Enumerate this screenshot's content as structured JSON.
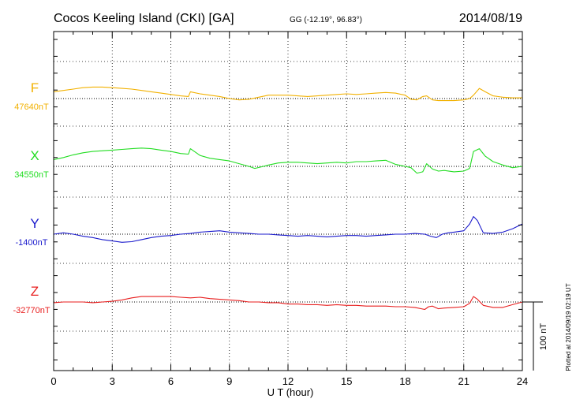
{
  "chart_data": {
    "type": "line",
    "title": "Cocos Keeling Island (CKI)  [GA]",
    "coords": "GG (-12.19°,  96.83°)",
    "date": "2014/08/19",
    "xlabel": "U T (hour)",
    "xlim": [
      0,
      24
    ],
    "x_ticks": [
      "0",
      "3",
      "6",
      "9",
      "12",
      "15",
      "18",
      "21",
      "24"
    ],
    "scale_label": "100 nT",
    "plotted_note": "Plotted at 2014/09/19 02:19 UT",
    "grid": true,
    "series": [
      {
        "name": "F",
        "baseline_label": "47640nT",
        "color": "#f2b100",
        "unit": "nT",
        "x": [
          0,
          0.5,
          1,
          1.5,
          2,
          2.5,
          3,
          3.5,
          4,
          4.5,
          5,
          5.5,
          6,
          6.5,
          6.9,
          7.0,
          7.5,
          8,
          8.5,
          9,
          9.5,
          10,
          10.5,
          11,
          11.5,
          12,
          12.5,
          13,
          13.5,
          14,
          14.5,
          15,
          15.5,
          16,
          16.5,
          17,
          17.5,
          18,
          18.3,
          18.6,
          18.9,
          19.1,
          19.4,
          19.7,
          20,
          20.5,
          21,
          21.3,
          21.5,
          21.8,
          22.1,
          22.5,
          23,
          23.5,
          24
        ],
        "values": [
          10,
          12,
          14,
          16,
          17,
          17,
          16,
          15,
          14,
          12,
          10,
          8,
          6,
          4,
          3,
          10,
          7,
          5,
          3,
          0,
          -2,
          -1,
          2,
          5,
          5,
          5,
          4,
          3,
          4,
          5,
          6,
          7,
          6,
          7,
          8,
          9,
          8,
          5,
          -1,
          -2,
          3,
          4,
          -2,
          -3,
          -3,
          -3,
          -2,
          0,
          5,
          15,
          10,
          4,
          2,
          1,
          1
        ]
      },
      {
        "name": "X",
        "baseline_label": "34550nT",
        "color": "#22dd22",
        "unit": "nT",
        "x": [
          0,
          0.5,
          1,
          1.5,
          2,
          2.5,
          3,
          3.5,
          4,
          4.5,
          5,
          5.5,
          6,
          6.5,
          6.9,
          7.0,
          7.5,
          8,
          8.5,
          9,
          9.5,
          10,
          10.3,
          10.6,
          11,
          11.5,
          12,
          12.5,
          13,
          13.5,
          14,
          14.5,
          15,
          15.5,
          16,
          16.5,
          17,
          17.5,
          18,
          18.3,
          18.6,
          18.9,
          19.1,
          19.4,
          19.7,
          20,
          20.5,
          21,
          21.3,
          21.5,
          21.8,
          22.1,
          22.5,
          23,
          23.5,
          24
        ],
        "values": [
          10,
          13,
          17,
          20,
          22,
          23,
          24,
          25,
          26,
          27,
          26,
          24,
          22,
          19,
          18,
          26,
          16,
          12,
          10,
          8,
          4,
          0,
          -3,
          -1,
          2,
          5,
          6,
          6,
          5,
          4,
          5,
          6,
          5,
          7,
          7,
          8,
          9,
          3,
          0,
          -2,
          -10,
          -8,
          4,
          -4,
          -7,
          -6,
          -8,
          -7,
          -3,
          22,
          26,
          15,
          7,
          2,
          -2,
          0
        ]
      },
      {
        "name": "Y",
        "baseline_label": "-1400nT",
        "color": "#1a1acc",
        "unit": "nT",
        "x": [
          0,
          0.5,
          1,
          1.5,
          2,
          2.5,
          3,
          3.5,
          4,
          4.5,
          5,
          5.5,
          6,
          6.5,
          7,
          7.5,
          8,
          8.5,
          9,
          9.5,
          10,
          10.5,
          11,
          11.5,
          12,
          12.5,
          13,
          13.5,
          14,
          14.5,
          15,
          15.5,
          16,
          16.5,
          17,
          17.5,
          18,
          18.5,
          19,
          19.3,
          19.6,
          19.9,
          20.2,
          20.5,
          21,
          21.3,
          21.5,
          21.7,
          22,
          22.5,
          23,
          23.5,
          24
        ],
        "values": [
          0,
          2,
          0,
          -3,
          -5,
          -8,
          -10,
          -12,
          -11,
          -8,
          -5,
          -3,
          -2,
          0,
          1,
          3,
          4,
          5,
          3,
          2,
          1,
          0,
          0,
          -1,
          -2,
          -3,
          -2,
          -3,
          -4,
          -3,
          -2,
          -2,
          -3,
          -2,
          -1,
          0,
          0,
          1,
          0,
          -3,
          -5,
          0,
          2,
          3,
          5,
          15,
          26,
          20,
          2,
          1,
          3,
          8,
          15
        ]
      },
      {
        "name": "Z",
        "baseline_label": "-32770nT",
        "color": "#e81e1e",
        "unit": "nT",
        "x": [
          0,
          0.5,
          1,
          1.5,
          2,
          2.5,
          3,
          3.5,
          4,
          4.5,
          5,
          5.5,
          6,
          6.5,
          7,
          7.5,
          8,
          8.5,
          9,
          9.5,
          10,
          10.5,
          11,
          11.5,
          12,
          12.5,
          13,
          13.5,
          14,
          14.5,
          15,
          15.5,
          16,
          16.5,
          17,
          17.5,
          18,
          18.5,
          19,
          19.2,
          19.4,
          19.7,
          20,
          20.5,
          21,
          21.3,
          21.5,
          21.7,
          22,
          22.5,
          23,
          23.5,
          24
        ],
        "values": [
          -1,
          0,
          0,
          0,
          -1,
          0,
          1,
          3,
          6,
          8,
          8,
          8,
          8,
          7,
          6,
          7,
          5,
          4,
          3,
          2,
          0,
          0,
          -1,
          -1,
          -3,
          -3,
          -4,
          -4,
          -5,
          -4,
          -5,
          -5,
          -6,
          -6,
          -6,
          -7,
          -7,
          -8,
          -11,
          -7,
          -6,
          -10,
          -9,
          -8,
          -7,
          -2,
          8,
          4,
          -5,
          -8,
          -8,
          -4,
          0
        ]
      }
    ]
  }
}
